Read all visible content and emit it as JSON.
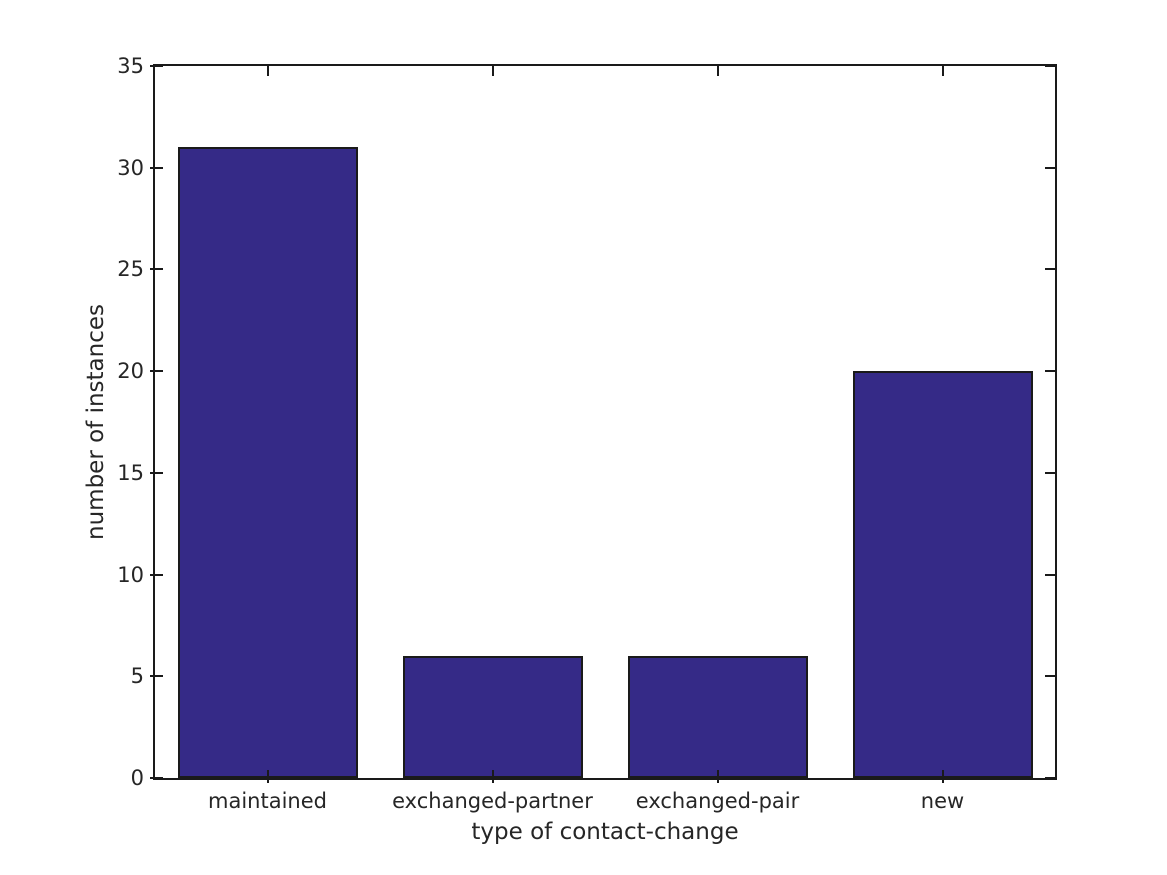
{
  "figure": {
    "background": "#ffffff"
  },
  "chart_data": {
    "type": "bar",
    "categories": [
      "maintained",
      "exchanged-partner",
      "exchanged-pair",
      "new"
    ],
    "values": [
      31,
      6,
      6,
      20
    ],
    "xlabel": "type of contact-change",
    "ylabel": "number of instances",
    "ylim": [
      0,
      35
    ],
    "yticks": [
      0,
      5,
      10,
      15,
      20,
      25,
      30,
      35
    ],
    "bar_width_fraction": 0.8,
    "bar_color": "#352a87",
    "bar_edge_color": "#1a1a1a",
    "axis_color": "#1a1a1a",
    "text_color": "#262626",
    "grid": false,
    "legend_position": "none"
  }
}
